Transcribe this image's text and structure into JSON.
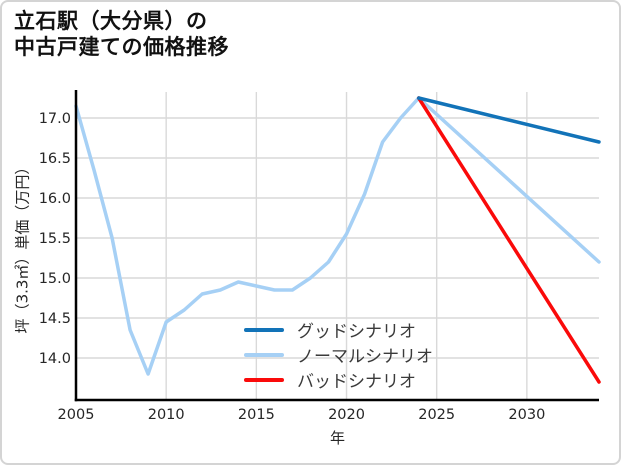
{
  "title": {
    "line1": "立石駅（大分県）の",
    "line2": "中古戸建ての価格推移"
  },
  "chart_data": {
    "type": "line",
    "title": "立石駅（大分県）の中古戸建ての価格推移",
    "xlabel": "年",
    "ylabel": "坪（3.3㎡）単価（万円）",
    "xlim": [
      2005,
      2034
    ],
    "ylim": [
      13.475,
      17.325
    ],
    "grid": true,
    "grid_color": "#d9d9d9",
    "axis_color": "#000000",
    "tick_label_color": "#262626",
    "x_ticks": [
      2005,
      2010,
      2015,
      2020,
      2025,
      2030
    ],
    "y_ticks": [
      {
        "value": 14.0,
        "label": "14.0"
      },
      {
        "value": 14.5,
        "label": "14.5"
      },
      {
        "value": 15.0,
        "label": "15.0"
      },
      {
        "value": 15.5,
        "label": "15.5"
      },
      {
        "value": 16.0,
        "label": "16.0"
      },
      {
        "value": 16.5,
        "label": "16.5"
      },
      {
        "value": 17.0,
        "label": "17.0"
      }
    ],
    "legend_position": "lower-center",
    "series": [
      {
        "id": "good-scenario",
        "name": "グッドシナリオ",
        "color": "#1273b8",
        "x": [
          2024,
          2034
        ],
        "y": [
          17.25,
          16.7
        ]
      },
      {
        "id": "normal-scenario",
        "name": "ノーマルシナリオ",
        "color": "#a6d0f5",
        "x": [
          2005,
          2006,
          2007,
          2008,
          2009,
          2010,
          2011,
          2012,
          2013,
          2014,
          2015,
          2016,
          2017,
          2018,
          2019,
          2020,
          2021,
          2022,
          2023,
          2024,
          2034
        ],
        "y": [
          17.15,
          16.35,
          15.5,
          14.35,
          13.8,
          14.45,
          14.6,
          14.8,
          14.85,
          14.95,
          14.9,
          14.85,
          14.85,
          15.0,
          15.2,
          15.55,
          16.05,
          16.7,
          17.0,
          17.25,
          15.2
        ]
      },
      {
        "id": "bad-scenario",
        "name": "バッドシナリオ",
        "color": "#fa0a0a",
        "x": [
          2024,
          2034
        ],
        "y": [
          17.25,
          13.7
        ]
      }
    ]
  }
}
